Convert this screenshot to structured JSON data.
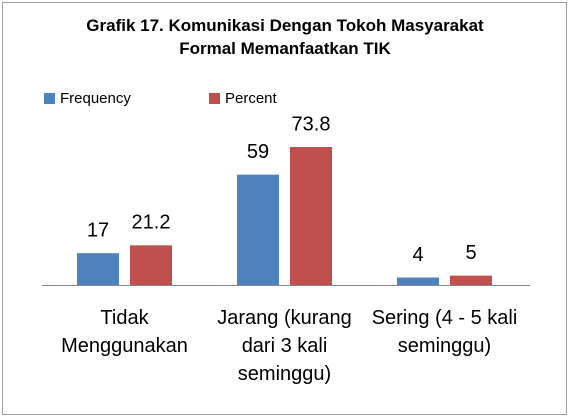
{
  "chart_data": {
    "type": "bar",
    "title": "Grafik 17. Komunikasi Dengan Tokoh Masyarakat Formal Memanfaatkan TIK",
    "categories": [
      "Tidak Menggunakan",
      "Jarang (kurang dari 3 kali seminggu)",
      "Sering (4 - 5 kali seminggu)"
    ],
    "series": [
      {
        "name": "Frequency",
        "color": "#4f81bd",
        "values": [
          17,
          59,
          4
        ]
      },
      {
        "name": "Percent",
        "color": "#c0504d",
        "values": [
          21.2,
          73.8,
          5
        ]
      }
    ],
    "legend": "top-left"
  }
}
